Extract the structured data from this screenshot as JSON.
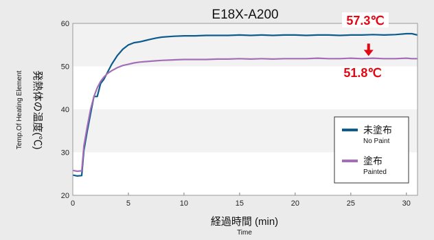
{
  "chart_data": {
    "type": "line",
    "title": "E18X-A200",
    "xlabel_main": "経過時間 (min)",
    "xlabel_sub": "Time",
    "ylabel_main": "発熱体の温度(℃)",
    "ylabel_sub": "Temp.Of Heating Element",
    "xlim": [
      0,
      31
    ],
    "ylim": [
      20,
      60
    ],
    "xticks": [
      0,
      5,
      10,
      15,
      20,
      25,
      30
    ],
    "yticks": [
      20,
      30,
      40,
      50,
      60
    ],
    "grid": "alternating horizontal bands",
    "legend_position": "lower-right",
    "annotations": {
      "top_value": "57.3℃",
      "bottom_value": "51.8℃",
      "arrow_x": 26.6,
      "arrow_from": 55.3,
      "arrow_to": 52.4,
      "color": "#e30613"
    },
    "series": [
      {
        "name": "未塗布",
        "name_sub": "No Paint",
        "color": "#0b5b8c",
        "x": [
          0,
          0.4,
          0.8,
          1.0,
          1.3,
          1.6,
          1.9,
          2.2,
          2.5,
          2.8,
          3.1,
          3.5,
          4.0,
          4.5,
          5.0,
          5.5,
          6.0,
          6.5,
          7.0,
          7.5,
          8.0,
          9.0,
          10.0,
          11.0,
          12.0,
          13.0,
          14.0,
          15.0,
          16.0,
          17.0,
          18.0,
          19.0,
          20.0,
          21.0,
          22.0,
          23.0,
          24.0,
          25.0,
          26.0,
          27.0,
          28.0,
          29.0,
          30.0,
          30.5,
          31.0
        ],
        "y": [
          24.7,
          24.5,
          24.6,
          30.5,
          35.0,
          39.0,
          43.0,
          43.0,
          46.0,
          47.0,
          48.5,
          50.5,
          52.5,
          54.0,
          55.0,
          55.5,
          55.7,
          56.0,
          56.3,
          56.6,
          56.8,
          57.0,
          57.1,
          57.1,
          57.2,
          57.2,
          57.2,
          57.3,
          57.2,
          57.3,
          57.2,
          57.3,
          57.3,
          57.2,
          57.3,
          57.3,
          57.2,
          57.3,
          57.3,
          57.4,
          57.3,
          57.4,
          57.6,
          57.6,
          57.3
        ]
      },
      {
        "name": "塗布",
        "name_sub": "Painted",
        "color": "#a26fb5",
        "x": [
          0,
          0.4,
          0.8,
          1.0,
          1.3,
          1.6,
          1.9,
          2.2,
          2.5,
          2.8,
          3.1,
          3.5,
          4.0,
          4.5,
          5.0,
          5.5,
          6.0,
          6.5,
          7.0,
          7.5,
          8.0,
          9.0,
          10.0,
          11.0,
          12.0,
          13.0,
          14.0,
          15.0,
          16.0,
          17.0,
          18.0,
          19.0,
          20.0,
          21.0,
          22.0,
          23.0,
          24.0,
          25.0,
          26.0,
          27.0,
          28.0,
          29.0,
          30.0,
          30.5,
          31.0
        ],
        "y": [
          25.8,
          25.6,
          25.7,
          31.5,
          36.0,
          40.0,
          43.0,
          45.0,
          46.5,
          47.5,
          48.3,
          49.0,
          49.7,
          50.2,
          50.5,
          50.8,
          51.0,
          51.1,
          51.2,
          51.3,
          51.4,
          51.5,
          51.6,
          51.6,
          51.6,
          51.7,
          51.7,
          51.8,
          51.7,
          51.8,
          51.7,
          51.8,
          51.8,
          51.8,
          51.9,
          51.8,
          51.8,
          51.9,
          51.8,
          51.9,
          51.8,
          51.8,
          51.9,
          51.8,
          51.8
        ]
      }
    ]
  }
}
